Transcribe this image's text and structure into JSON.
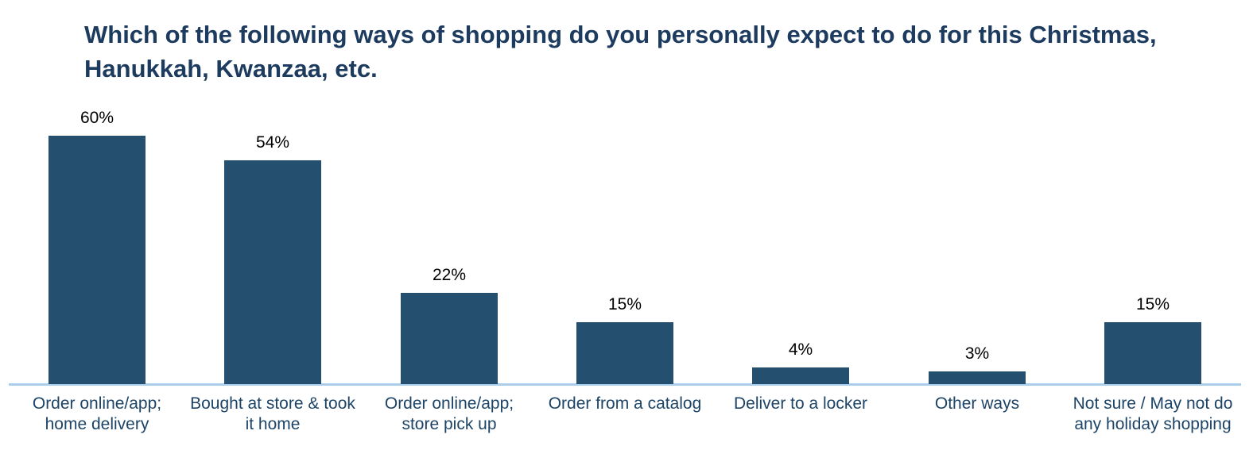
{
  "chart_data": {
    "type": "bar",
    "title": "Which of the following ways of shopping do you personally expect to do for this Christmas, Hanukkah, Kwanzaa, etc.",
    "categories": [
      [
        "Order online/app;",
        "home delivery"
      ],
      [
        "Bought at store & took",
        "it home"
      ],
      [
        "Order online/app;",
        "store pick up"
      ],
      [
        "Order from a catalog"
      ],
      [
        "Deliver to a locker"
      ],
      [
        "Other ways"
      ],
      [
        "Not sure / May not do",
        "any holiday shopping"
      ]
    ],
    "values": [
      60,
      54,
      22,
      15,
      4,
      3,
      15
    ],
    "value_labels": [
      "60%",
      "54%",
      "22%",
      "15%",
      "4%",
      "3%",
      "15%"
    ],
    "unit": "%",
    "xlabel": "",
    "ylabel": "",
    "ylim": [
      0,
      65
    ],
    "grid": false,
    "legend": false,
    "value_labels_position": "above-bars",
    "colors": {
      "bar": "#254F6E",
      "axis_line": "#A9CDEA",
      "title_text": "#1C3B5E",
      "category_text": "#1D4467",
      "value_text": "#000000",
      "background": "#FFFFFF"
    }
  }
}
